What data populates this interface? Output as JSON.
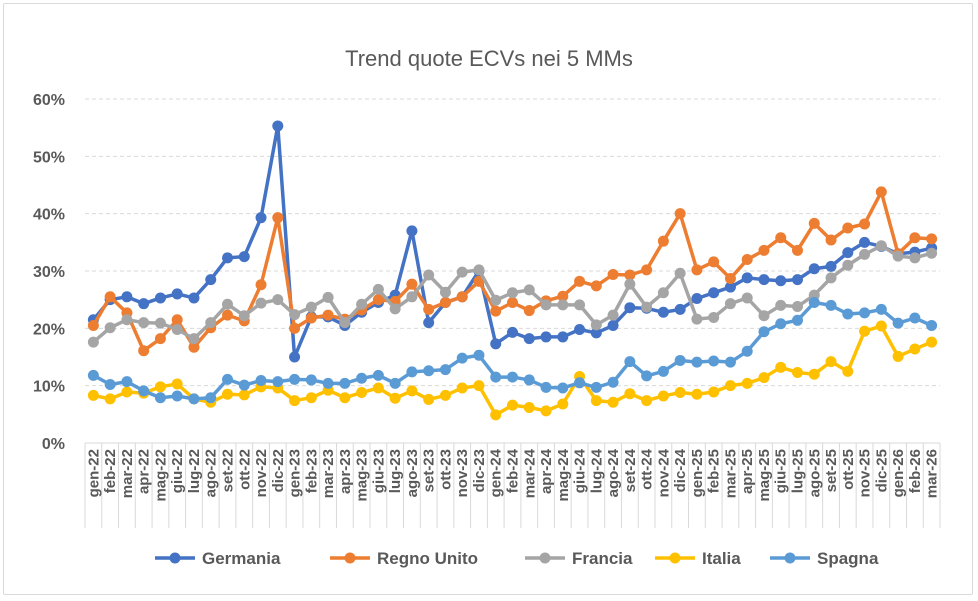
{
  "chart_data": {
    "type": "line",
    "title": "Trend quote ECVs nei 5 MMs",
    "xlabel": "",
    "ylabel": "",
    "ylim": [
      0,
      60
    ],
    "yticks": [
      "0%",
      "10%",
      "20%",
      "30%",
      "40%",
      "50%",
      "60%"
    ],
    "grid": true,
    "legend_position": "bottom",
    "categories": [
      "gen-22",
      "feb-22",
      "mar-22",
      "apr-22",
      "mag-22",
      "giu-22",
      "lug-22",
      "ago-22",
      "set-22",
      "ott-22",
      "nov-22",
      "dic-22",
      "gen-23",
      "feb-23",
      "mar-23",
      "apr-23",
      "mag-23",
      "giu-23",
      "lug-23",
      "ago-23",
      "set-23",
      "ott-23",
      "nov-23",
      "dic-23",
      "gen-24",
      "feb-24",
      "mar-24",
      "apr-24",
      "mag-24",
      "giu-24",
      "lug-24",
      "ago-24",
      "set-24",
      "ott-24",
      "nov-24",
      "dic-24",
      "gen-25",
      "feb-25",
      "mar-25",
      "apr-25",
      "mag-25",
      "giu-25",
      "lug-25",
      "ago-25",
      "set-25",
      "ott-25",
      "nov-25",
      "dic-25",
      "gen-26",
      "feb-26",
      "mar-26"
    ],
    "series": [
      {
        "name": "Germania",
        "color": "#4472c4",
        "values": [
          21.5,
          25,
          25.5,
          24.3,
          25.3,
          26,
          25.3,
          28.5,
          32.3,
          32.5,
          39.3,
          55.3,
          15,
          22,
          22,
          20.5,
          22.8,
          24.5,
          25.8,
          37,
          21,
          24.5,
          25.5,
          30,
          17.3,
          19.3,
          18.2,
          18.5,
          18.5,
          19.8,
          19.2,
          20.5,
          23.6,
          23.5,
          22.8,
          23.3,
          25.2,
          26.2,
          27.2,
          28.8,
          28.5,
          28.3,
          28.5,
          30.4,
          30.8,
          33.2,
          35,
          34.3,
          33,
          33.3,
          34
        ]
      },
      {
        "name": "Regno Unito",
        "color": "#ed7d31",
        "values": [
          20.5,
          25.5,
          22.7,
          16.1,
          18.2,
          21.5,
          16.7,
          20.1,
          22.3,
          21.3,
          27.6,
          39.3,
          20,
          21.8,
          22.3,
          21.6,
          23.2,
          25,
          24.7,
          27.7,
          23.3,
          24.5,
          25.5,
          28.2,
          23,
          24.5,
          23.1,
          24.8,
          25.6,
          28.2,
          27.4,
          29.4,
          29.3,
          30.2,
          35.2,
          40,
          30.2,
          31.6,
          28.7,
          32,
          33.6,
          35.8,
          33.6,
          38.3,
          35.4,
          37.5,
          38.2,
          43.8,
          33,
          35.8,
          35.6
        ]
      },
      {
        "name": "Francia",
        "color": "#a5a5a5",
        "values": [
          17.6,
          20.1,
          21.5,
          21,
          20.9,
          19.8,
          18.2,
          21,
          24.2,
          22.2,
          24.4,
          25,
          22.4,
          23.7,
          25.4,
          21,
          24.2,
          26.8,
          23.4,
          25.5,
          29.3,
          26.3,
          29.8,
          30.2,
          24.9,
          26.2,
          26.7,
          24.1,
          24.1,
          24.1,
          20.6,
          22.3,
          27.7,
          23.7,
          26.2,
          29.6,
          21.6,
          21.9,
          24.3,
          25.3,
          22.2,
          24,
          23.8,
          25.8,
          28.8,
          31,
          32.9,
          34.4,
          32.6,
          32.3,
          33.1
        ]
      },
      {
        "name": "Italia",
        "color": "#ffc000",
        "values": [
          8.3,
          7.7,
          8.9,
          8.7,
          9.8,
          10.3,
          7.7,
          7.1,
          8.5,
          8.4,
          9.8,
          9.6,
          7.4,
          7.9,
          9.2,
          7.9,
          8.8,
          9.6,
          7.8,
          9.1,
          7.6,
          8.3,
          9.6,
          10,
          4.9,
          6.6,
          6.2,
          5.6,
          6.8,
          11.6,
          7.4,
          7.1,
          8.6,
          7.4,
          8.2,
          8.8,
          8.5,
          8.9,
          10,
          10.4,
          11.4,
          13.2,
          12.3,
          12,
          14.2,
          12.5,
          19.5,
          20.4,
          15.1,
          16.4,
          17.6
        ]
      },
      {
        "name": "Spagna",
        "color": "#5b9bd5",
        "values": [
          11.8,
          10.2,
          10.7,
          9.1,
          7.9,
          8.2,
          7.7,
          7.9,
          11.1,
          10.1,
          10.9,
          10.7,
          11.1,
          11,
          10.4,
          10.4,
          11.3,
          11.8,
          10.4,
          12.4,
          12.6,
          12.8,
          14.8,
          15.3,
          11.5,
          11.5,
          11,
          9.7,
          9.6,
          10.5,
          9.7,
          10.6,
          14.2,
          11.7,
          12.5,
          14.4,
          14.1,
          14.3,
          14.1,
          16,
          19.4,
          20.8,
          21.4,
          24.5,
          24,
          22.5,
          22.7,
          23.3,
          20.9,
          21.8,
          20.5
        ]
      }
    ]
  }
}
